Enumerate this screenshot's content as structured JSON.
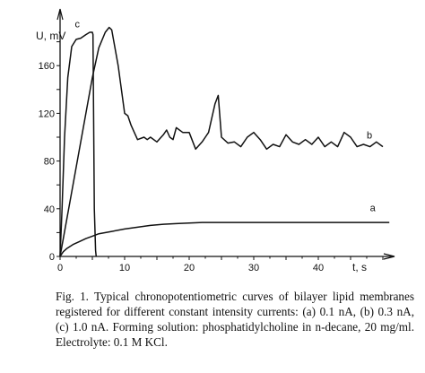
{
  "chart_data": {
    "type": "line",
    "title": "",
    "xlabel": "t, s",
    "ylabel": "U, mV",
    "xlim": [
      0,
      50
    ],
    "ylim": [
      0,
      200
    ],
    "x_ticks": [
      0,
      10,
      20,
      30,
      40
    ],
    "y_ticks": [
      0,
      40,
      80,
      120,
      160
    ],
    "grid": false,
    "series": [
      {
        "name": "a",
        "x": [
          0,
          0.5,
          1,
          2,
          3,
          4,
          5,
          6,
          8,
          10,
          12,
          14,
          16,
          18,
          20,
          22,
          25,
          30,
          35,
          40,
          45,
          51
        ],
        "y": [
          0,
          4,
          6.5,
          10,
          12.5,
          15,
          17,
          19,
          21,
          23,
          24.5,
          26,
          27,
          27.5,
          28,
          28.5,
          28.5,
          28.5,
          28.5,
          28.5,
          28.5,
          28.5
        ]
      },
      {
        "name": "b",
        "x": [
          0,
          1,
          2,
          3,
          4,
          5,
          6,
          7,
          7.6,
          8,
          8.5,
          9,
          9.5,
          10,
          10.5,
          11,
          12,
          13,
          13.5,
          14,
          15,
          16,
          16.5,
          17,
          17.5,
          18,
          19,
          20,
          21,
          22,
          22.5,
          23,
          23.5,
          24,
          24.5,
          25,
          26,
          27,
          28,
          29,
          30,
          31,
          32,
          33,
          34,
          35,
          36,
          37,
          38,
          39,
          40,
          41,
          42,
          43,
          44,
          45,
          46,
          47,
          48,
          49,
          50
        ],
        "y": [
          0,
          30,
          60,
          90,
          120,
          150,
          175,
          188,
          192,
          190,
          175,
          160,
          140,
          120,
          118,
          110,
          98,
          100,
          98,
          100,
          96,
          102,
          106,
          100,
          98,
          108,
          104,
          104,
          90,
          96,
          100,
          104,
          116,
          128,
          135,
          100,
          95,
          96,
          92,
          100,
          104,
          98,
          90,
          94,
          92,
          102,
          96,
          94,
          98,
          94,
          100,
          92,
          96,
          92,
          104,
          100,
          92,
          94,
          92,
          96,
          92
        ]
      },
      {
        "name": "c",
        "x": [
          0,
          0.3,
          0.7,
          1.2,
          1.8,
          2.5,
          3.2,
          4,
          4.6,
          5.0,
          5.1,
          5.3,
          5.5,
          5.6
        ],
        "y": [
          0,
          40,
          100,
          150,
          176,
          182,
          183,
          186,
          188,
          188,
          186,
          40,
          5,
          0
        ]
      }
    ]
  },
  "caption": {
    "text": "Fig. 1. Typical chronopotentiometric curves of bilayer lipid membranes registered for different constant intensity currents: (a) 0.1 nA, (b) 0.3 nA, (c) 1.0 nA. Forming solution: phosphatidylcholine in n-decane, 20 mg/ml. Electrolyte: 0.1 M KCl."
  }
}
